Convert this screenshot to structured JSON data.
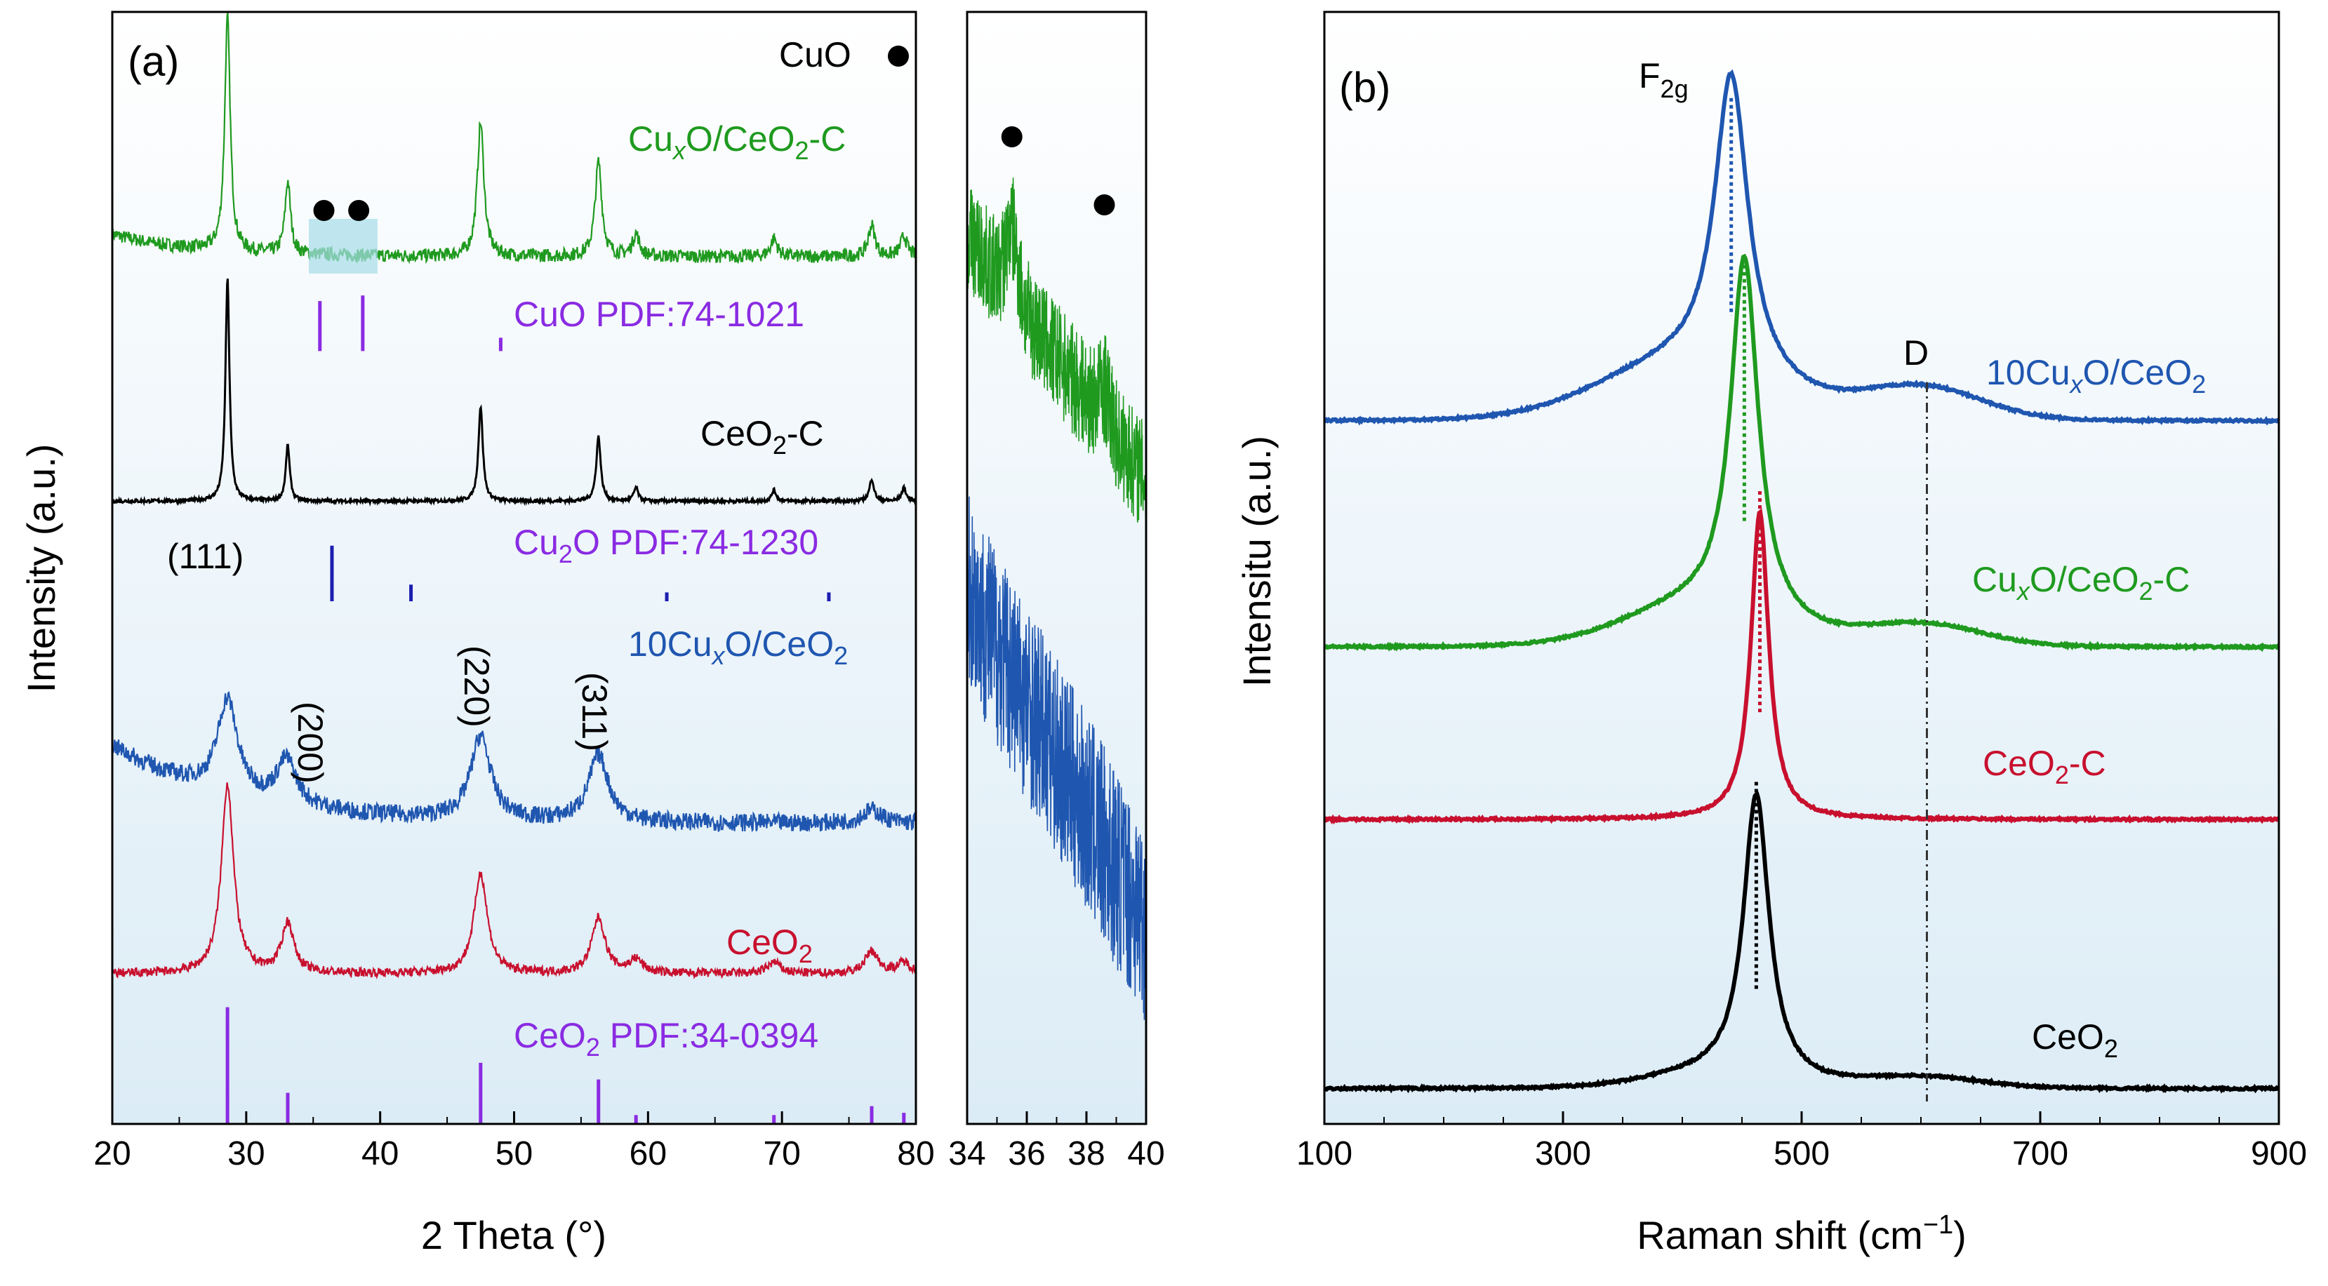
{
  "colors": {
    "green": "#1f9a1f",
    "black": "#000000",
    "blue": "#1f56b0",
    "red": "#c8102e",
    "purple": "#8a2be2",
    "navy": "#1d1db0",
    "bg_top": "#ffffff",
    "bg_bottom": "#dcecf6"
  },
  "chart_data": [
    {
      "type": "line",
      "panel_label": "(a)",
      "xlabel": "2 Theta (°)",
      "ylabel": "Intensity (a.u.)",
      "xlim": [
        20,
        80
      ],
      "xticks": [
        "20",
        "30",
        "40",
        "50",
        "60",
        "70",
        "80"
      ],
      "series": [
        {
          "name": "CuxO/CeO2-C",
          "label": {
            "pre": "Cu",
            "sub1": "x",
            "mid": "O/CeO",
            "sub2": "2",
            "post": "-C"
          },
          "color": "#1f9a1f",
          "baseline": 0.78,
          "noise": 0.006,
          "peaks": [
            {
              "x": 28.6,
              "h": 0.21,
              "w": 0.25
            },
            {
              "x": 33.1,
              "h": 0.065,
              "w": 0.25
            },
            {
              "x": 47.5,
              "h": 0.12,
              "w": 0.3
            },
            {
              "x": 56.3,
              "h": 0.085,
              "w": 0.3
            },
            {
              "x": 59.1,
              "h": 0.02,
              "w": 0.3
            },
            {
              "x": 69.4,
              "h": 0.016,
              "w": 0.3
            },
            {
              "x": 76.7,
              "h": 0.028,
              "w": 0.3
            },
            {
              "x": 79.1,
              "h": 0.018,
              "w": 0.3
            }
          ]
        },
        {
          "name": "CeO2-C",
          "label": {
            "pre": "CeO",
            "sub1": "2",
            "mid": "-C",
            "sub2": "",
            "post": ""
          },
          "color": "#000000",
          "baseline": 0.56,
          "noise": 0.0015,
          "peaks": [
            {
              "x": 28.6,
              "h": 0.2,
              "w": 0.18
            },
            {
              "x": 33.1,
              "h": 0.05,
              "w": 0.18
            },
            {
              "x": 47.5,
              "h": 0.085,
              "w": 0.2
            },
            {
              "x": 56.3,
              "h": 0.058,
              "w": 0.2
            },
            {
              "x": 59.1,
              "h": 0.012,
              "w": 0.2
            },
            {
              "x": 69.4,
              "h": 0.01,
              "w": 0.2
            },
            {
              "x": 76.7,
              "h": 0.02,
              "w": 0.2
            },
            {
              "x": 79.1,
              "h": 0.012,
              "w": 0.2
            }
          ]
        },
        {
          "name": "10CuxO/CeO2",
          "label": {
            "pre": "10Cu",
            "sub1": "x",
            "mid": "O/CeO",
            "sub2": "2",
            "post": ""
          },
          "color": "#1f56b0",
          "baseline": 0.27,
          "noise": 0.008,
          "peaks": [
            {
              "x": 28.6,
              "h": 0.085,
              "w": 0.9
            },
            {
              "x": 33.0,
              "h": 0.04,
              "w": 0.9
            },
            {
              "x": 47.5,
              "h": 0.075,
              "w": 0.9
            },
            {
              "x": 56.3,
              "h": 0.06,
              "w": 0.9
            },
            {
              "x": 76.7,
              "h": 0.012,
              "w": 0.9
            }
          ]
        },
        {
          "name": "CeO2",
          "label": {
            "pre": "CeO",
            "sub1": "2",
            "mid": "",
            "sub2": "",
            "post": ""
          },
          "color": "#c8102e",
          "baseline": 0.135,
          "noise": 0.004,
          "peaks": [
            {
              "x": 28.6,
              "h": 0.17,
              "w": 0.55
            },
            {
              "x": 33.1,
              "h": 0.045,
              "w": 0.55
            },
            {
              "x": 47.5,
              "h": 0.09,
              "w": 0.6
            },
            {
              "x": 56.3,
              "h": 0.05,
              "w": 0.6
            },
            {
              "x": 59.1,
              "h": 0.012,
              "w": 0.6
            },
            {
              "x": 69.4,
              "h": 0.01,
              "w": 0.6
            },
            {
              "x": 76.7,
              "h": 0.02,
              "w": 0.6
            },
            {
              "x": 79.1,
              "h": 0.01,
              "w": 0.6
            }
          ]
        }
      ],
      "reference_patterns": [
        {
          "name": "CuO PDF:74-1021",
          "label": {
            "pre": "CuO PDF:74-1021",
            "sub": "",
            "post": ""
          },
          "color": "#8a2be2",
          "base": 0.695,
          "lines": [
            {
              "x": 35.5,
              "h": 0.045
            },
            {
              "x": 38.7,
              "h": 0.05
            },
            {
              "x": 49.0,
              "h": 0.012
            }
          ]
        },
        {
          "name": "Cu2O PDF:74-1230",
          "label": {
            "pre": "Cu",
            "sub": "2",
            "post": "O PDF:74-1230"
          },
          "color": "#1d1db0",
          "base": 0.47,
          "lines": [
            {
              "x": 36.4,
              "h": 0.05
            },
            {
              "x": 42.3,
              "h": 0.015
            },
            {
              "x": 61.4,
              "h": 0.008
            },
            {
              "x": 73.5,
              "h": 0.008
            }
          ]
        },
        {
          "name": "CeO2 PDF:34-0394",
          "label": {
            "pre": "CeO",
            "sub": "2",
            "post": " PDF:34-0394"
          },
          "color": "#8a2be2",
          "base": 0.0,
          "lines": [
            {
              "x": 28.6,
              "h": 0.105
            },
            {
              "x": 33.1,
              "h": 0.028
            },
            {
              "x": 47.5,
              "h": 0.055
            },
            {
              "x": 56.3,
              "h": 0.04
            },
            {
              "x": 59.1,
              "h": 0.008
            },
            {
              "x": 69.4,
              "h": 0.008
            },
            {
              "x": 76.7,
              "h": 0.016
            },
            {
              "x": 79.1,
              "h": 0.01
            }
          ]
        }
      ],
      "annotations": {
        "miller": [
          "(111)",
          "(200)",
          "(220)",
          "(311)"
        ],
        "cuo_legend": "CuO",
        "cuo_markers_x": [
          35.8,
          38.4
        ]
      }
    },
    {
      "type": "line",
      "panel_label": "inset",
      "xlim": [
        34,
        40
      ],
      "xticks": [
        "34",
        "36",
        "38",
        "40"
      ],
      "series": [
        {
          "name": "CuxO/CeO2-C (zoom)",
          "color": "#1f9a1f",
          "start": 0.8,
          "end": 0.58,
          "noise": 0.05,
          "peaks": [
            {
              "x": 35.5,
              "h": 0.06,
              "w": 0.2
            },
            {
              "x": 38.6,
              "h": 0.03,
              "w": 0.2
            }
          ]
        },
        {
          "name": "10CuxO/CeO2 (zoom)",
          "color": "#1f56b0",
          "start": 0.48,
          "end": 0.18,
          "noise": 0.09,
          "peaks": []
        }
      ],
      "markers_x": [
        35.5,
        38.6
      ]
    },
    {
      "type": "line",
      "panel_label": "(b)",
      "xlabel_pre": "Raman shift (cm",
      "xlabel_sup": "−1",
      "xlabel_post": ")",
      "ylabel": "Intensitu (a.u.)",
      "xlim": [
        100,
        900
      ],
      "xticks": [
        "100",
        "300",
        "500",
        "700",
        "900"
      ],
      "f2g": {
        "main": "F",
        "sub": "2g"
      },
      "d_label": "D",
      "d_position": 605,
      "series": [
        {
          "name": "10CuxO/CeO2",
          "label": {
            "pre": "10Cu",
            "sub1": "x",
            "mid": "O/CeO",
            "sub2": "2",
            "post": ""
          },
          "color": "#1f56b0",
          "baseline": 0.62,
          "center": 441,
          "height": 0.28,
          "width": 17,
          "shoulder": 0.05,
          "shoulder_w": 70,
          "tail": 0.03
        },
        {
          "name": "CuxO/CeO2-C",
          "label": {
            "pre": "Cu",
            "sub1": "x",
            "mid": "O/CeO",
            "sub2": "2",
            "post": "-C"
          },
          "color": "#1f9a1f",
          "baseline": 0.41,
          "center": 452,
          "height": 0.335,
          "width": 14,
          "shoulder": 0.035,
          "shoulder_w": 60,
          "tail": 0.02
        },
        {
          "name": "CeO2-C",
          "label": {
            "pre": "CeO",
            "sub1": "2",
            "mid": "-C",
            "sub2": "",
            "post": ""
          },
          "color": "#c8102e",
          "baseline": 0.25,
          "center": 465,
          "height": 0.285,
          "width": 9,
          "shoulder": 0.0,
          "shoulder_w": 40,
          "tail": 0.0
        },
        {
          "name": "CeO2",
          "label": {
            "pre": "CeO",
            "sub1": "2",
            "mid": "",
            "sub2": "",
            "post": ""
          },
          "color": "#000000",
          "baseline": 0.0,
          "center": 462,
          "height": 0.265,
          "width": 13,
          "shoulder": 0.012,
          "shoulder_w": 50,
          "tail": 0.01
        }
      ]
    }
  ]
}
